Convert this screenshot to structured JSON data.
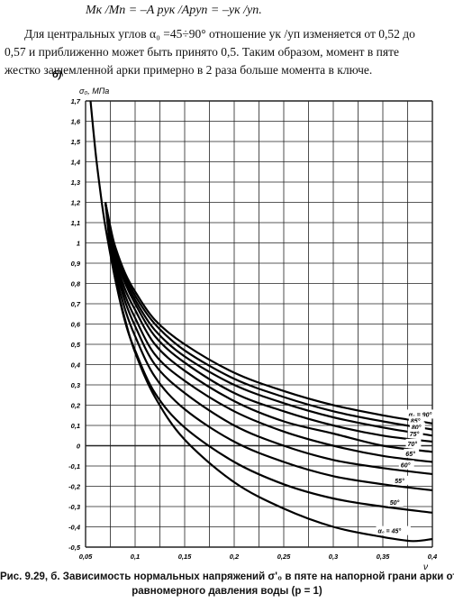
{
  "text": {
    "formula": "Mк /Mп = –A pyк /Apyп = –yк /yп.",
    "lines": [
      "Для центральных углов α₀ =45÷90° отношение yк /yп изменяется от 0,52 до",
      "0,57 и приближенно может быть принято 0,5. Таким образом, момент в пяте",
      "жестко защемленной арки примерно в 2 раза больше момента в ключе."
    ]
  },
  "caption": {
    "line1": "Рис. 9.29, б. Зависимость нормальных напряжений σ'₀ в пяте на напорной грани арки от",
    "line2": "равномерного давления воды (p = 1)"
  },
  "chart_data": {
    "type": "line",
    "panel_label": "б)",
    "ylabel": "σ₀, МПа",
    "xlabel": "ν",
    "xlim": [
      0.05,
      0.4
    ],
    "ylim": [
      -0.5,
      1.7
    ],
    "x_ticks": [
      "0,05",
      "0,1",
      "0,15",
      "0,2",
      "0,25",
      "0,3",
      "0,35",
      "0,4"
    ],
    "y_ticks": [
      "1,7",
      "1,6",
      "1,5",
      "1,4",
      "1,3",
      "1,2",
      "1,1",
      "1",
      "0,9",
      "0,8",
      "0,7",
      "0,6",
      "0,5",
      "0,4",
      "0,3",
      "0,2",
      "0,1",
      "0",
      "-0,1",
      "-0,2",
      "-0,3",
      "-0,4",
      "-0,5"
    ],
    "series": [
      {
        "name": "α₀ = 90°",
        "x": [
          0.07,
          0.075,
          0.08,
          0.09,
          0.1,
          0.12,
          0.15,
          0.2,
          0.25,
          0.3,
          0.35,
          0.4
        ],
        "y": [
          1.2,
          1.08,
          0.98,
          0.85,
          0.76,
          0.62,
          0.5,
          0.36,
          0.27,
          0.2,
          0.15,
          0.11
        ]
      },
      {
        "name": "85°",
        "x": [
          0.07,
          0.075,
          0.08,
          0.09,
          0.1,
          0.12,
          0.15,
          0.2,
          0.25,
          0.3,
          0.35,
          0.4
        ],
        "y": [
          1.2,
          1.07,
          0.97,
          0.84,
          0.74,
          0.6,
          0.47,
          0.33,
          0.24,
          0.17,
          0.12,
          0.08
        ]
      },
      {
        "name": "80°",
        "x": [
          0.07,
          0.075,
          0.08,
          0.09,
          0.1,
          0.12,
          0.15,
          0.2,
          0.25,
          0.3,
          0.35,
          0.4
        ],
        "y": [
          1.2,
          1.06,
          0.96,
          0.82,
          0.72,
          0.57,
          0.44,
          0.3,
          0.21,
          0.14,
          0.09,
          0.05
        ]
      },
      {
        "name": "75°",
        "x": [
          0.07,
          0.075,
          0.08,
          0.09,
          0.1,
          0.12,
          0.15,
          0.2,
          0.25,
          0.3,
          0.35,
          0.4
        ],
        "y": [
          1.2,
          1.05,
          0.94,
          0.8,
          0.7,
          0.54,
          0.41,
          0.26,
          0.17,
          0.1,
          0.05,
          0.02
        ]
      },
      {
        "name": "70°",
        "x": [
          0.07,
          0.075,
          0.08,
          0.09,
          0.1,
          0.12,
          0.15,
          0.2,
          0.25,
          0.3,
          0.35,
          0.4
        ],
        "y": [
          1.2,
          1.04,
          0.92,
          0.77,
          0.67,
          0.5,
          0.37,
          0.22,
          0.12,
          0.06,
          0.0,
          -0.03
        ]
      },
      {
        "name": "65°",
        "x": [
          0.07,
          0.075,
          0.08,
          0.09,
          0.1,
          0.12,
          0.15,
          0.2,
          0.25,
          0.3,
          0.35,
          0.4
        ],
        "y": [
          1.2,
          1.03,
          0.9,
          0.74,
          0.63,
          0.45,
          0.32,
          0.17,
          0.07,
          0.0,
          -0.05,
          -0.08
        ]
      },
      {
        "name": "60°",
        "x": [
          0.07,
          0.075,
          0.08,
          0.09,
          0.1,
          0.12,
          0.15,
          0.2,
          0.25,
          0.3,
          0.35,
          0.4
        ],
        "y": [
          1.2,
          1.02,
          0.88,
          0.71,
          0.59,
          0.4,
          0.26,
          0.1,
          0.0,
          -0.07,
          -0.11,
          -0.14
        ]
      },
      {
        "name": "55°",
        "x": [
          0.07,
          0.075,
          0.08,
          0.09,
          0.1,
          0.12,
          0.15,
          0.2,
          0.25,
          0.3,
          0.35,
          0.4
        ],
        "y": [
          1.2,
          1.0,
          0.85,
          0.67,
          0.54,
          0.34,
          0.18,
          0.02,
          -0.08,
          -0.15,
          -0.19,
          -0.22
        ]
      },
      {
        "name": "50°",
        "x": [
          0.07,
          0.075,
          0.08,
          0.09,
          0.1,
          0.12,
          0.15,
          0.2,
          0.25,
          0.3,
          0.35,
          0.4
        ],
        "y": [
          1.2,
          0.97,
          0.82,
          0.61,
          0.47,
          0.26,
          0.09,
          -0.08,
          -0.19,
          -0.26,
          -0.3,
          -0.33
        ]
      },
      {
        "name": "α₀ = 45°",
        "x": [
          0.055,
          0.06,
          0.065,
          0.07,
          0.08,
          0.09,
          0.1,
          0.12,
          0.15,
          0.2,
          0.25,
          0.3,
          0.35,
          0.38,
          0.4
        ],
        "y": [
          1.7,
          1.45,
          1.25,
          1.08,
          0.82,
          0.62,
          0.46,
          0.24,
          0.03,
          -0.18,
          -0.31,
          -0.4,
          -0.45,
          -0.47,
          -0.46
        ]
      }
    ],
    "curve_labels": [
      "α₀ = 90°",
      "85°",
      "80°",
      "75°",
      "70°",
      "65°",
      "60°",
      "55°",
      "50°",
      "α₀ = 45°"
    ],
    "grid": true
  }
}
